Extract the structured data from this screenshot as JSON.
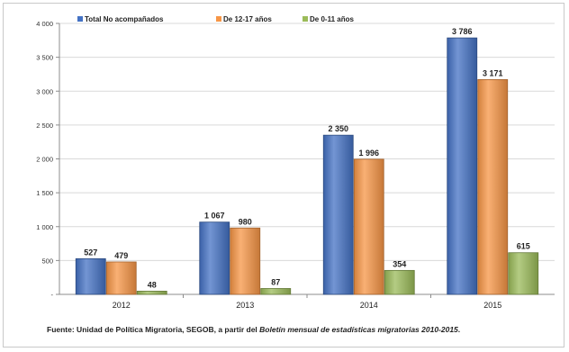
{
  "chart_data": {
    "type": "bar",
    "categories": [
      "2012",
      "2013",
      "2014",
      "2015"
    ],
    "series": [
      {
        "name": "Total No acompañados",
        "values": [
          527,
          1067,
          2350,
          3786
        ],
        "labels": [
          "527",
          "1 067",
          "2 350",
          "3 786"
        ]
      },
      {
        "name": "De 12-17 años",
        "values": [
          479,
          980,
          1996,
          3171
        ],
        "labels": [
          "479",
          "980",
          "1 996",
          "3 171"
        ]
      },
      {
        "name": "De 0-11 años",
        "values": [
          48,
          87,
          354,
          615
        ],
        "labels": [
          "48",
          "87",
          "354",
          "615"
        ]
      }
    ],
    "ylim": [
      0,
      4000
    ],
    "yticks": [
      0,
      500,
      1000,
      1500,
      2000,
      2500,
      3000,
      3500,
      4000
    ],
    "ytick_labels": [
      "-",
      "500",
      "1 000",
      "1 500",
      "2 000",
      "2 500",
      "3 000",
      "3 500",
      "4 000"
    ],
    "grid": true,
    "legend": "top-left",
    "colors": [
      "#4472c4",
      "#f79646",
      "#9bbb59"
    ]
  },
  "source": {
    "prefix": "Fuente:  Unidad de Política Migratoria, SEGOB,  a partir del ",
    "italic": "Boletín mensual de estadísticas migratorias 2010-2015",
    "suffix": "."
  }
}
